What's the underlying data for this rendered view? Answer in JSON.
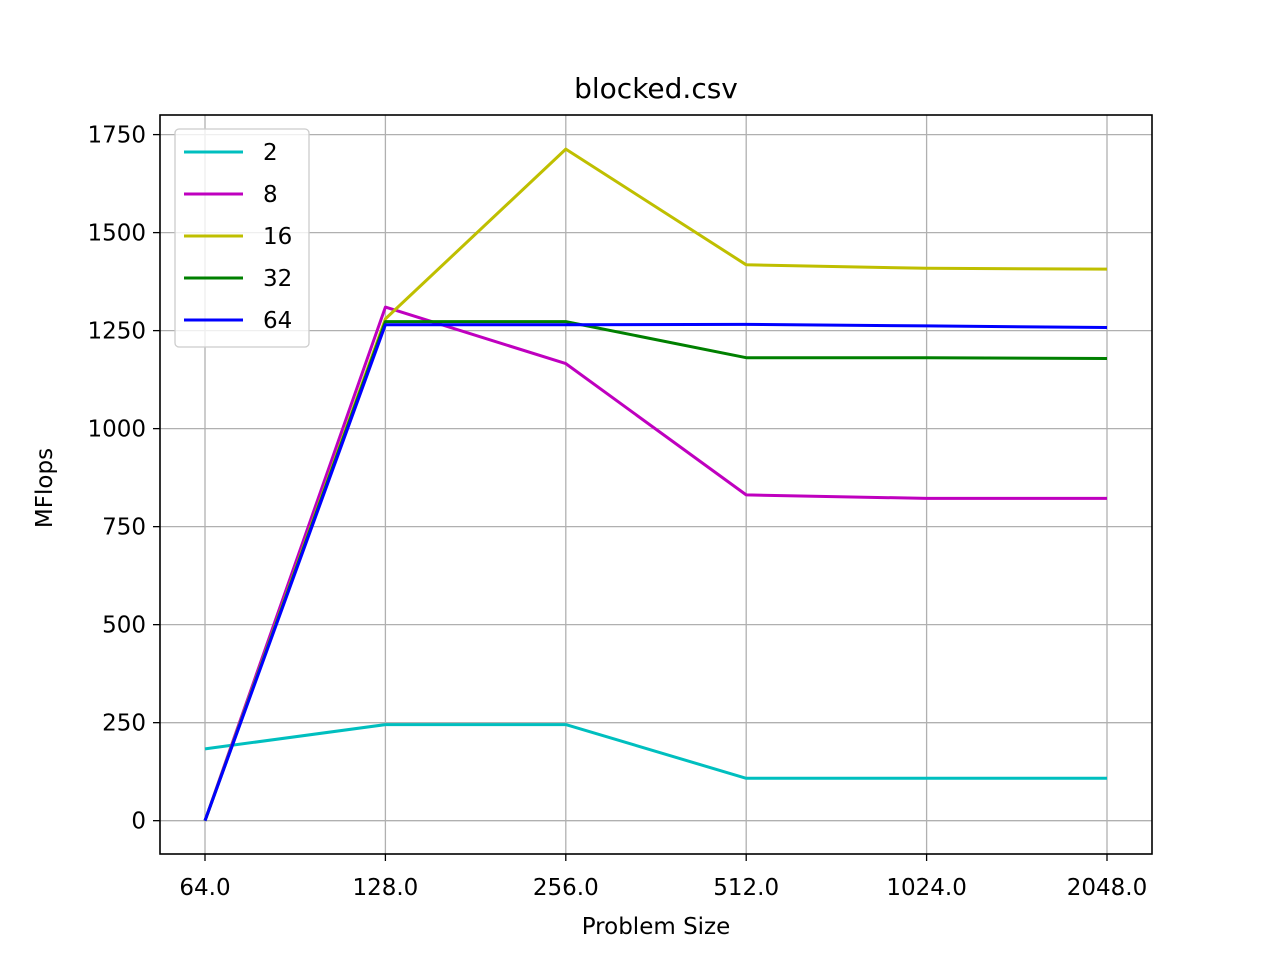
{
  "chart_data": {
    "type": "line",
    "title": "blocked.csv",
    "xlabel": "Problem Size",
    "ylabel": "MFlops",
    "x": [
      "64.0",
      "128.0",
      "256.0",
      "512.0",
      "1024.0",
      "2048.0"
    ],
    "x_scale": "log2",
    "ylim": [
      -85,
      1800
    ],
    "yticks": [
      0,
      250,
      500,
      750,
      1000,
      1250,
      1500,
      1750
    ],
    "grid": true,
    "legend_position": "top-left",
    "series": [
      {
        "name": "2",
        "color": "#00bfbf",
        "values": [
          183,
          245,
          245,
          108,
          108,
          108
        ]
      },
      {
        "name": "8",
        "color": "#bf00bf",
        "values": [
          0,
          1310,
          1166,
          831,
          822,
          822
        ]
      },
      {
        "name": "16",
        "color": "#bfbf00",
        "values": [
          0,
          1280,
          1713,
          1418,
          1409,
          1407
        ]
      },
      {
        "name": "32",
        "color": "#008000",
        "values": [
          0,
          1273,
          1273,
          1181,
          1181,
          1179
        ]
      },
      {
        "name": "64",
        "color": "#0000ff",
        "values": [
          0,
          1265,
          1265,
          1266,
          1262,
          1258
        ]
      }
    ]
  }
}
